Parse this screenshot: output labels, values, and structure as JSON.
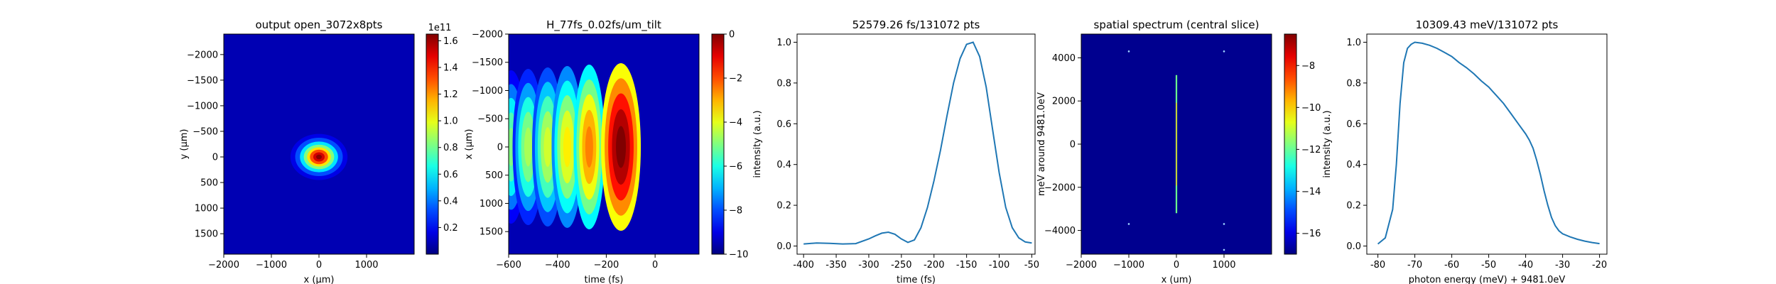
{
  "chart_data": [
    {
      "type": "heatmap",
      "title": "output open_3072x8pts",
      "xlabel": "x (μm)",
      "ylabel": "y (μm)",
      "xlim": [
        -2000,
        2000
      ],
      "ylim": [
        1900,
        -2400
      ],
      "xticks": [
        "−2000",
        "−1000",
        "0",
        "1000"
      ],
      "yticks": [
        "−2000",
        "−1500",
        "−1000",
        "−500",
        "0",
        "500",
        "1000",
        "1500"
      ],
      "colorbar": {
        "ticks": [
          "0.2",
          "0.4",
          "0.6",
          "0.8",
          "1.0",
          "1.2",
          "1.4",
          "1.6"
        ],
        "range": [
          0.0,
          1.65
        ],
        "exponent": "1e11"
      },
      "colormap": "jet",
      "beam": {
        "x": 0,
        "y": 0,
        "sigma_x": 200,
        "sigma_y": 150,
        "peak": 1.62
      }
    },
    {
      "type": "heatmap",
      "title": "H_77fs_0.02fs/um_tilt",
      "xlabel": "time (fs)",
      "ylabel": "x (μm)",
      "xlim": [
        -600,
        180
      ],
      "ylim": [
        1900,
        -2000
      ],
      "xticks": [
        "−600",
        "−400",
        "−200",
        "0"
      ],
      "yticks": [
        "−2000",
        "−1500",
        "−1000",
        "−500",
        "0",
        "500",
        "1000",
        "1500"
      ],
      "colorbar": {
        "ticks": [
          "0",
          "−2",
          "−4",
          "−6",
          "−8",
          "−10"
        ],
        "range": [
          -10,
          0
        ]
      },
      "colormap": "jet",
      "lobes_time_fs": [
        -140,
        -270,
        -360,
        -440,
        -520,
        -590
      ],
      "lobes_log_intensity": [
        0,
        -2.5,
        -3.6,
        -4.2,
        -4.6,
        -5.0
      ]
    },
    {
      "type": "line",
      "title": "52579.26 fs/131072 pts",
      "xlabel": "time (fs)",
      "ylabel": "intensity (a.u.)",
      "xlim": [
        -410,
        -45
      ],
      "ylim": [
        -0.04,
        1.04
      ],
      "xticks": [
        -400,
        -350,
        -300,
        -250,
        -200,
        -150,
        -100,
        -50
      ],
      "yticks": [
        "0.0",
        "0.2",
        "0.4",
        "0.6",
        "0.8",
        "1.0"
      ],
      "series": [
        {
          "color": "#1f77b4",
          "x": [
            -400,
            -380,
            -360,
            -340,
            -320,
            -300,
            -290,
            -280,
            -270,
            -260,
            -250,
            -240,
            -230,
            -220,
            -210,
            -200,
            -190,
            -180,
            -170,
            -160,
            -150,
            -140,
            -130,
            -120,
            -110,
            -100,
            -90,
            -80,
            -70,
            -60,
            -50
          ],
          "y": [
            0.01,
            0.015,
            0.013,
            0.01,
            0.012,
            0.035,
            0.05,
            0.063,
            0.068,
            0.058,
            0.035,
            0.018,
            0.03,
            0.09,
            0.19,
            0.32,
            0.47,
            0.64,
            0.8,
            0.92,
            0.99,
            1.0,
            0.93,
            0.78,
            0.57,
            0.36,
            0.19,
            0.09,
            0.04,
            0.02,
            0.015
          ]
        }
      ]
    },
    {
      "type": "heatmap",
      "title": "spatial spectrum (central slice)",
      "xlabel": "x (um)",
      "ylabel": "meV around 9481.0eV",
      "xlim": [
        -2000,
        2000
      ],
      "ylim": [
        -5100,
        5100
      ],
      "xticks": [
        "−2000",
        "−1000",
        "0",
        "1000"
      ],
      "yticks": [
        "4000",
        "2000",
        "0",
        "−2000",
        "−4000"
      ],
      "colorbar": {
        "ticks": [
          "−8",
          "−10",
          "−12",
          "−14",
          "−16"
        ],
        "range": [
          -17,
          -6.5
        ]
      },
      "colormap": "jet",
      "line": {
        "x": 0,
        "y_from": -3200,
        "y_to": 3200
      },
      "dots": [
        [
          -1000,
          4300
        ],
        [
          1000,
          4300
        ],
        [
          -1000,
          -3700
        ],
        [
          1000,
          -3700
        ],
        [
          1000,
          -4900
        ]
      ]
    },
    {
      "type": "line",
      "title": "10309.43 meV/131072 pts",
      "xlabel": "photon energy (meV) + 9481.0eV",
      "ylabel": "intensity (a.u.)",
      "xlim": [
        -83,
        -18
      ],
      "ylim": [
        -0.04,
        1.04
      ],
      "xticks": [
        -80,
        -70,
        -60,
        -50,
        -40,
        -30,
        -20
      ],
      "yticks": [
        "0.0",
        "0.2",
        "0.4",
        "0.6",
        "0.8",
        "1.0"
      ],
      "series": [
        {
          "color": "#1f77b4",
          "x": [
            -80,
            -78,
            -76,
            -75,
            -74,
            -73,
            -72,
            -71,
            -70,
            -68,
            -66,
            -64,
            -62,
            -60,
            -58,
            -56,
            -54,
            -52,
            -50,
            -48,
            -46,
            -44,
            -42,
            -40,
            -39,
            -38,
            -37,
            -36,
            -35,
            -34,
            -33,
            -32,
            -31,
            -30,
            -28,
            -26,
            -24,
            -22,
            -20
          ],
          "y": [
            0.01,
            0.04,
            0.18,
            0.4,
            0.7,
            0.9,
            0.97,
            0.99,
            1.0,
            0.995,
            0.985,
            0.97,
            0.95,
            0.93,
            0.9,
            0.875,
            0.845,
            0.81,
            0.78,
            0.74,
            0.7,
            0.65,
            0.6,
            0.55,
            0.52,
            0.48,
            0.42,
            0.35,
            0.27,
            0.2,
            0.14,
            0.1,
            0.075,
            0.06,
            0.045,
            0.033,
            0.024,
            0.017,
            0.012
          ]
        }
      ]
    }
  ]
}
